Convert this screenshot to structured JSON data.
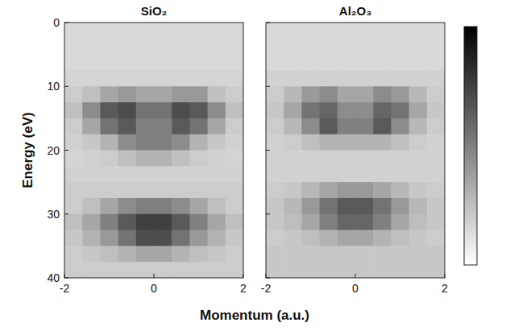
{
  "chart_data": [
    {
      "type": "heatmap",
      "title": "SiO₂",
      "xlabel": "Momentum (a.u.)",
      "ylabel": "Energy (eV)",
      "xlim": [
        -2,
        2
      ],
      "xticks": [
        -2,
        0,
        2
      ],
      "ylim": [
        0,
        40
      ],
      "yticks": [
        0,
        10,
        20,
        30,
        40
      ],
      "x_edges": [
        -2,
        -1.6,
        -1.2,
        -0.8,
        -0.4,
        0,
        0.4,
        0.8,
        1.2,
        1.6,
        2
      ],
      "y_edges": [
        0,
        2.5,
        5,
        7.5,
        10,
        12.5,
        15,
        17.5,
        20,
        22.5,
        25,
        27.5,
        30,
        32.5,
        35,
        37.5,
        40
      ],
      "colorbar_range": [
        0,
        1
      ],
      "cells": [
        [
          0.15,
          0.15,
          0.15,
          0.15,
          0.15,
          0.15,
          0.15,
          0.15,
          0.15,
          0.15
        ],
        [
          0.15,
          0.15,
          0.15,
          0.15,
          0.15,
          0.15,
          0.15,
          0.15,
          0.15,
          0.15
        ],
        [
          0.15,
          0.15,
          0.15,
          0.15,
          0.15,
          0.15,
          0.15,
          0.15,
          0.15,
          0.15
        ],
        [
          0.17,
          0.17,
          0.17,
          0.17,
          0.17,
          0.17,
          0.17,
          0.17,
          0.17,
          0.17
        ],
        [
          0.2,
          0.25,
          0.35,
          0.4,
          0.35,
          0.35,
          0.4,
          0.4,
          0.25,
          0.2
        ],
        [
          0.25,
          0.45,
          0.65,
          0.7,
          0.55,
          0.55,
          0.7,
          0.65,
          0.45,
          0.25
        ],
        [
          0.2,
          0.35,
          0.55,
          0.65,
          0.5,
          0.5,
          0.65,
          0.55,
          0.35,
          0.2
        ],
        [
          0.18,
          0.22,
          0.3,
          0.45,
          0.5,
          0.5,
          0.45,
          0.3,
          0.22,
          0.18
        ],
        [
          0.17,
          0.18,
          0.2,
          0.25,
          0.3,
          0.3,
          0.25,
          0.2,
          0.18,
          0.17
        ],
        [
          0.18,
          0.18,
          0.18,
          0.18,
          0.18,
          0.18,
          0.18,
          0.18,
          0.18,
          0.18
        ],
        [
          0.2,
          0.2,
          0.2,
          0.2,
          0.2,
          0.2,
          0.2,
          0.2,
          0.2,
          0.2
        ],
        [
          0.2,
          0.25,
          0.35,
          0.45,
          0.5,
          0.5,
          0.45,
          0.35,
          0.25,
          0.2
        ],
        [
          0.25,
          0.35,
          0.5,
          0.65,
          0.75,
          0.75,
          0.65,
          0.5,
          0.35,
          0.25
        ],
        [
          0.22,
          0.3,
          0.4,
          0.55,
          0.7,
          0.7,
          0.55,
          0.4,
          0.3,
          0.22
        ],
        [
          0.2,
          0.22,
          0.25,
          0.3,
          0.35,
          0.35,
          0.3,
          0.25,
          0.22,
          0.2
        ],
        [
          0.2,
          0.2,
          0.2,
          0.2,
          0.2,
          0.2,
          0.2,
          0.2,
          0.2,
          0.2
        ]
      ]
    },
    {
      "type": "heatmap",
      "title": "Al₂O₃",
      "tick_labels": "x",
      "xlim": [
        -2,
        2
      ],
      "xticks": [
        -2,
        0,
        2
      ],
      "ylim": [
        0,
        40
      ],
      "yticks": [
        0,
        10,
        20,
        30,
        40
      ],
      "x_edges": [
        -2,
        -1.6,
        -1.2,
        -0.8,
        -0.4,
        0,
        0.4,
        0.8,
        1.2,
        1.6,
        2
      ],
      "y_edges": [
        0,
        2.5,
        5,
        7.5,
        10,
        12.5,
        15,
        17.5,
        20,
        22.5,
        25,
        27.5,
        30,
        32.5,
        35,
        37.5,
        40
      ],
      "colorbar_range": [
        0,
        1
      ],
      "cells": [
        [
          0.15,
          0.15,
          0.15,
          0.15,
          0.15,
          0.15,
          0.15,
          0.15,
          0.15,
          0.15
        ],
        [
          0.15,
          0.15,
          0.15,
          0.15,
          0.15,
          0.15,
          0.15,
          0.15,
          0.15,
          0.15
        ],
        [
          0.15,
          0.15,
          0.15,
          0.15,
          0.15,
          0.15,
          0.15,
          0.15,
          0.15,
          0.15
        ],
        [
          0.18,
          0.18,
          0.18,
          0.18,
          0.18,
          0.18,
          0.18,
          0.18,
          0.18,
          0.18
        ],
        [
          0.2,
          0.28,
          0.4,
          0.45,
          0.35,
          0.35,
          0.45,
          0.4,
          0.28,
          0.2
        ],
        [
          0.22,
          0.35,
          0.55,
          0.6,
          0.45,
          0.45,
          0.6,
          0.55,
          0.35,
          0.22
        ],
        [
          0.2,
          0.28,
          0.45,
          0.65,
          0.5,
          0.5,
          0.65,
          0.45,
          0.28,
          0.2
        ],
        [
          0.18,
          0.2,
          0.25,
          0.3,
          0.3,
          0.3,
          0.3,
          0.25,
          0.2,
          0.18
        ],
        [
          0.18,
          0.18,
          0.18,
          0.18,
          0.18,
          0.18,
          0.18,
          0.18,
          0.18,
          0.18
        ],
        [
          0.18,
          0.18,
          0.18,
          0.18,
          0.18,
          0.18,
          0.18,
          0.18,
          0.18,
          0.18
        ],
        [
          0.2,
          0.22,
          0.28,
          0.35,
          0.4,
          0.4,
          0.35,
          0.28,
          0.22,
          0.2
        ],
        [
          0.22,
          0.28,
          0.4,
          0.55,
          0.65,
          0.65,
          0.55,
          0.4,
          0.28,
          0.22
        ],
        [
          0.22,
          0.26,
          0.35,
          0.5,
          0.6,
          0.6,
          0.5,
          0.35,
          0.26,
          0.22
        ],
        [
          0.2,
          0.22,
          0.25,
          0.3,
          0.35,
          0.35,
          0.3,
          0.25,
          0.22,
          0.2
        ],
        [
          0.22,
          0.22,
          0.22,
          0.22,
          0.22,
          0.22,
          0.22,
          0.22,
          0.22,
          0.22
        ],
        [
          0.22,
          0.22,
          0.22,
          0.22,
          0.22,
          0.22,
          0.22,
          0.22,
          0.22,
          0.22
        ]
      ]
    }
  ]
}
